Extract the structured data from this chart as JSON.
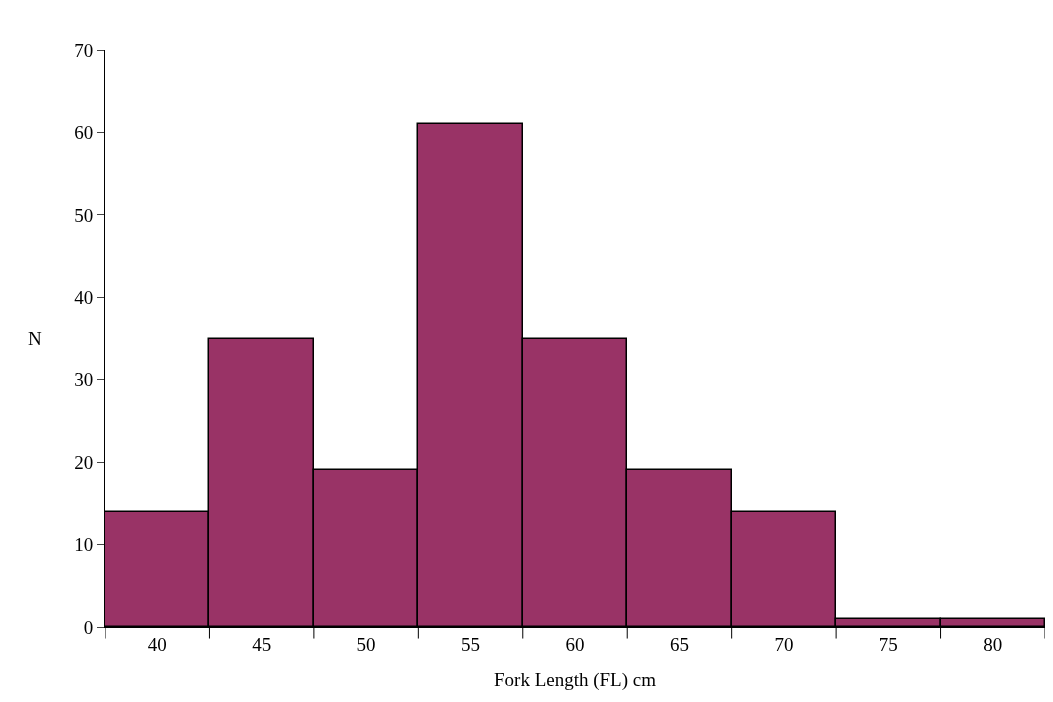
{
  "chart_data": {
    "type": "bar",
    "xlabel": "Fork Length (FL) cm",
    "ylabel": "N",
    "categories": [
      "40",
      "45",
      "50",
      "55",
      "60",
      "65",
      "70",
      "75",
      "80"
    ],
    "values": [
      14,
      35,
      19,
      61,
      35,
      19,
      14,
      1,
      1
    ],
    "color": "#993366",
    "ylim": [
      0,
      70
    ],
    "yticks": [
      0,
      10,
      20,
      30,
      40,
      50,
      60,
      70
    ]
  }
}
